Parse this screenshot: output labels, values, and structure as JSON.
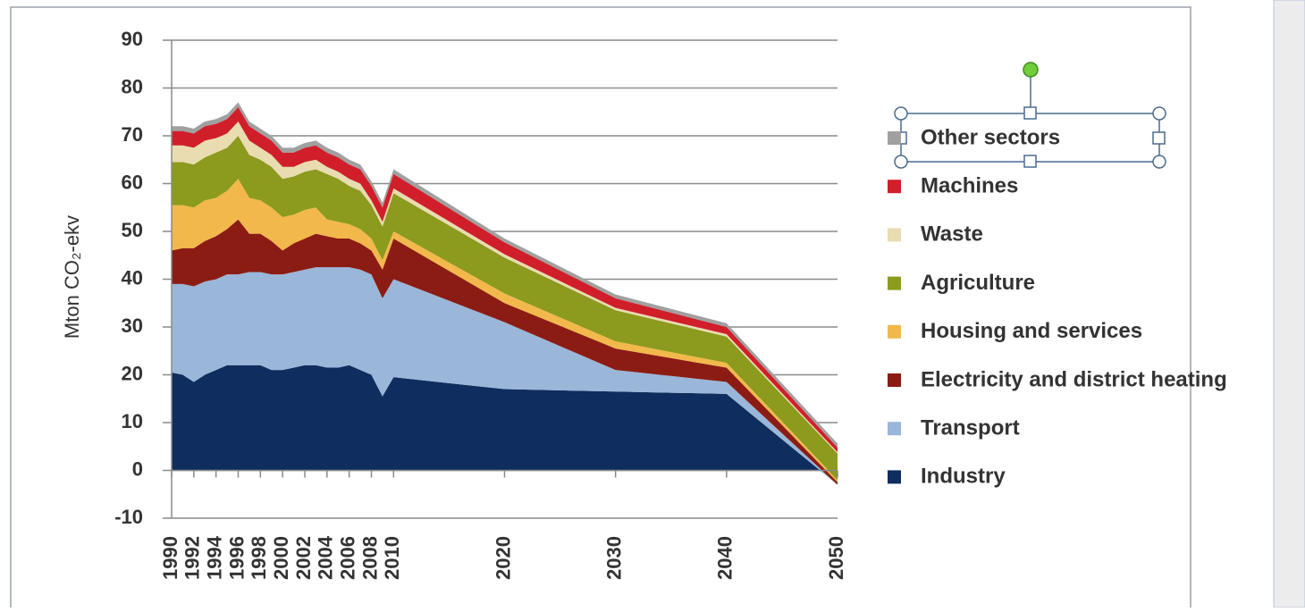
{
  "chart_data": {
    "type": "stacked_area",
    "y_label": "Mton CO₂-ekv",
    "x": [
      1990,
      1991,
      1992,
      1993,
      1994,
      1995,
      1996,
      1997,
      1998,
      1999,
      2000,
      2001,
      2002,
      2003,
      2004,
      2005,
      2006,
      2007,
      2008,
      2009,
      2010,
      2020,
      2030,
      2040,
      2050
    ],
    "xlim": [
      1990,
      2050
    ],
    "xticks": [
      1990,
      1992,
      1994,
      1996,
      1998,
      2000,
      2002,
      2004,
      2006,
      2008,
      2010,
      2020,
      2030,
      2040,
      2050
    ],
    "ylim": [
      -10,
      90
    ],
    "yticks": [
      -10,
      0,
      10,
      20,
      30,
      40,
      50,
      60,
      70,
      80,
      90
    ],
    "grid": true,
    "legend": "right",
    "series": [
      {
        "name": "Industry",
        "color": "#0f2d5e",
        "values": [
          20.5,
          20,
          18.5,
          20,
          21,
          22,
          22,
          22,
          22,
          21,
          21,
          21.5,
          22,
          22,
          21.5,
          21.5,
          22,
          21,
          20,
          15.5,
          19.5,
          17,
          16.5,
          16,
          -3
        ]
      },
      {
        "name": "Transport",
        "color": "#9ab6d9",
        "values": [
          18.5,
          19,
          20,
          19.5,
          19,
          19,
          19,
          19.5,
          19.5,
          20,
          20,
          20,
          20,
          20.5,
          21,
          21,
          20.5,
          21,
          21,
          20.5,
          20.5,
          14,
          4.5,
          2.5,
          0
        ]
      },
      {
        "name": "Electricity and district heating",
        "color": "#8b1c14",
        "values": [
          7,
          7.5,
          8,
          8.5,
          9,
          9.5,
          11.5,
          8,
          8,
          7,
          5,
          6,
          6.5,
          7,
          6.5,
          6,
          6,
          5.5,
          5,
          6,
          8.5,
          4,
          4.5,
          3,
          0.5
        ]
      },
      {
        "name": "Housing and services",
        "color": "#f2b84b",
        "values": [
          9.5,
          9,
          8.5,
          8.5,
          8,
          8,
          8.5,
          7.5,
          7,
          7,
          7,
          6,
          6,
          5.5,
          3.5,
          3.5,
          3,
          3,
          2.5,
          2,
          1.5,
          2,
          1.5,
          1,
          0.5
        ]
      },
      {
        "name": "Agriculture",
        "color": "#8c9a1d",
        "values": [
          9,
          9,
          9,
          9,
          9.5,
          9,
          9,
          9,
          8.5,
          8.5,
          8,
          8,
          8,
          8,
          9.5,
          9,
          8,
          8,
          7,
          7,
          8,
          7.5,
          6.5,
          5.5,
          5.5
        ]
      },
      {
        "name": "Waste",
        "color": "#e8dcb0",
        "values": [
          3.5,
          3.5,
          3.5,
          3.5,
          3,
          3,
          3,
          3,
          2.5,
          2.5,
          2.5,
          2,
          2,
          2,
          1.5,
          1.5,
          1.5,
          1.5,
          1,
          1,
          1,
          0.7,
          0.5,
          0.5,
          0.3
        ]
      },
      {
        "name": "Machines",
        "color": "#d01f2a",
        "values": [
          3,
          3,
          3,
          3,
          3,
          3,
          3,
          3,
          3,
          3,
          3,
          3,
          3,
          3,
          3,
          3,
          3,
          3,
          3,
          3,
          3,
          2.5,
          2,
          1.5,
          1
        ]
      },
      {
        "name": "Other sectors",
        "color": "#a0a0a0",
        "values": [
          1,
          1,
          1,
          1,
          1,
          1,
          1,
          1,
          1,
          1,
          1,
          1,
          1,
          1,
          1,
          1,
          1,
          1,
          1,
          1,
          1,
          0.8,
          0.8,
          0.8,
          0.8
        ]
      }
    ]
  }
}
